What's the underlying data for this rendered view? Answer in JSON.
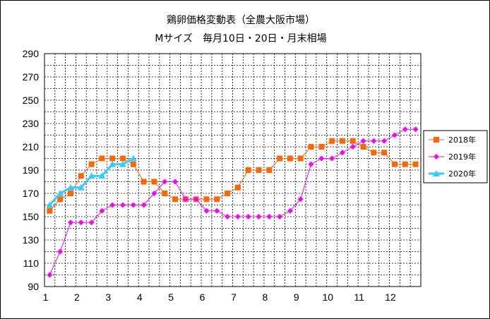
{
  "chart_data": {
    "type": "line",
    "title": "鶏卵価格変動表（全農大阪市場）",
    "subtitle": "Mサイズ　毎月10日・20日・月末相場",
    "xlabel": "",
    "ylabel": "",
    "ylim": [
      90,
      290
    ],
    "yticks": [
      "290",
      "270",
      "250",
      "230",
      "210",
      "190",
      "170",
      "150",
      "130",
      "110",
      "90"
    ],
    "xticks": [
      "1",
      "2",
      "3",
      "4",
      "5",
      "6",
      "7",
      "8",
      "9",
      "10",
      "11",
      "12"
    ],
    "grid": true,
    "legend_position": "right",
    "series": [
      {
        "name": "2018年",
        "color": "#FF6600",
        "marker": "square",
        "values": [
          155,
          165,
          170,
          185,
          195,
          200,
          200,
          200,
          195,
          180,
          180,
          170,
          165,
          165,
          165,
          165,
          165,
          170,
          175,
          190,
          190,
          190,
          200,
          200,
          200,
          210,
          210,
          215,
          215,
          215,
          210,
          205,
          205,
          195,
          195,
          195
        ]
      },
      {
        "name": "2019年",
        "color": "#FF00FF",
        "marker": "diamond",
        "values": [
          100,
          120,
          145,
          145,
          145,
          155,
          160,
          160,
          160,
          160,
          170,
          180,
          180,
          165,
          165,
          155,
          155,
          150,
          150,
          150,
          150,
          150,
          150,
          155,
          165,
          195,
          200,
          200,
          205,
          210,
          215,
          215,
          215,
          220,
          225,
          225
        ]
      },
      {
        "name": "2020年",
        "color": "#33CCFF",
        "marker": "triangle",
        "values": [
          160,
          170,
          175,
          175,
          185,
          185,
          195,
          195,
          200
        ]
      }
    ]
  }
}
